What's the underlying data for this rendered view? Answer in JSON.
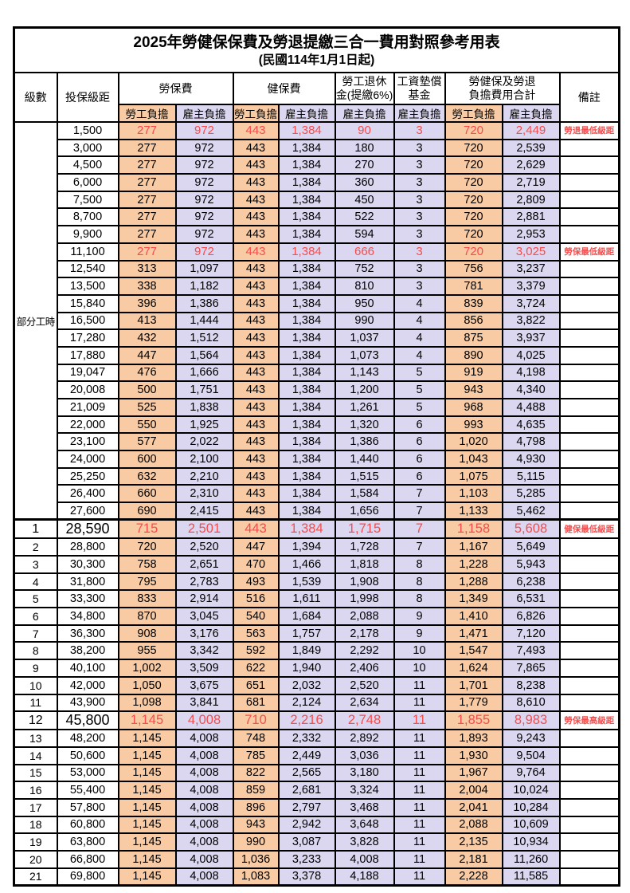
{
  "title": "2025年勞健保保費及勞退提繳三合一費用對照參考用表",
  "subtitle": "(民國114年1月1日起)",
  "header": {
    "level": "級數",
    "bracket": "投保級距",
    "labor_insurance": "勞保費",
    "health_insurance": "健保費",
    "pension_line1": "勞工退休",
    "pension_line2": "金(提繳6%)",
    "wage_fund_line1": "工資墊償",
    "wage_fund_line2": "基金",
    "total_line1": "勞健保及勞退",
    "total_line2": "負擔費用合計",
    "remark": "備註",
    "employee_label": "勞工負擔",
    "employer_label": "雇主負擔"
  },
  "partial_time_label": "部分工時",
  "colors": {
    "employee_bg": "#F8CBA4",
    "employer_bg": "#DBD7F0",
    "highlight": "#F84C4C"
  },
  "rows": [
    {
      "level": "",
      "bracket": "1,500",
      "values": [
        "277",
        "972",
        "443",
        "1,384",
        "90",
        "3",
        "720",
        "2,449"
      ],
      "remark": "勞退最低級距",
      "highlight": true,
      "big": false
    },
    {
      "level": "",
      "bracket": "3,000",
      "values": [
        "277",
        "972",
        "443",
        "1,384",
        "180",
        "3",
        "720",
        "2,539"
      ],
      "remark": "",
      "highlight": false,
      "big": false
    },
    {
      "level": "",
      "bracket": "4,500",
      "values": [
        "277",
        "972",
        "443",
        "1,384",
        "270",
        "3",
        "720",
        "2,629"
      ],
      "remark": "",
      "highlight": false,
      "big": false
    },
    {
      "level": "",
      "bracket": "6,000",
      "values": [
        "277",
        "972",
        "443",
        "1,384",
        "360",
        "3",
        "720",
        "2,719"
      ],
      "remark": "",
      "highlight": false,
      "big": false
    },
    {
      "level": "",
      "bracket": "7,500",
      "values": [
        "277",
        "972",
        "443",
        "1,384",
        "450",
        "3",
        "720",
        "2,809"
      ],
      "remark": "",
      "highlight": false,
      "big": false
    },
    {
      "level": "",
      "bracket": "8,700",
      "values": [
        "277",
        "972",
        "443",
        "1,384",
        "522",
        "3",
        "720",
        "2,881"
      ],
      "remark": "",
      "highlight": false,
      "big": false
    },
    {
      "level": "",
      "bracket": "9,900",
      "values": [
        "277",
        "972",
        "443",
        "1,384",
        "594",
        "3",
        "720",
        "2,953"
      ],
      "remark": "",
      "highlight": false,
      "big": false
    },
    {
      "level": "",
      "bracket": "11,100",
      "values": [
        "277",
        "972",
        "443",
        "1,384",
        "666",
        "3",
        "720",
        "3,025"
      ],
      "remark": "勞保最低級距",
      "highlight": true,
      "big": false
    },
    {
      "level": "",
      "bracket": "12,540",
      "values": [
        "313",
        "1,097",
        "443",
        "1,384",
        "752",
        "3",
        "756",
        "3,237"
      ],
      "remark": "",
      "highlight": false,
      "big": false
    },
    {
      "level": "",
      "bracket": "13,500",
      "values": [
        "338",
        "1,182",
        "443",
        "1,384",
        "810",
        "3",
        "781",
        "3,379"
      ],
      "remark": "",
      "highlight": false,
      "big": false
    },
    {
      "level": "",
      "bracket": "15,840",
      "values": [
        "396",
        "1,386",
        "443",
        "1,384",
        "950",
        "4",
        "839",
        "3,724"
      ],
      "remark": "",
      "highlight": false,
      "big": false
    },
    {
      "level": "",
      "bracket": "16,500",
      "values": [
        "413",
        "1,444",
        "443",
        "1,384",
        "990",
        "4",
        "856",
        "3,822"
      ],
      "remark": "",
      "highlight": false,
      "big": false
    },
    {
      "level": "",
      "bracket": "17,280",
      "values": [
        "432",
        "1,512",
        "443",
        "1,384",
        "1,037",
        "4",
        "875",
        "3,937"
      ],
      "remark": "",
      "highlight": false,
      "big": false
    },
    {
      "level": "",
      "bracket": "17,880",
      "values": [
        "447",
        "1,564",
        "443",
        "1,384",
        "1,073",
        "4",
        "890",
        "4,025"
      ],
      "remark": "",
      "highlight": false,
      "big": false
    },
    {
      "level": "",
      "bracket": "19,047",
      "values": [
        "476",
        "1,666",
        "443",
        "1,384",
        "1,143",
        "5",
        "919",
        "4,198"
      ],
      "remark": "",
      "highlight": false,
      "big": false
    },
    {
      "level": "",
      "bracket": "20,008",
      "values": [
        "500",
        "1,751",
        "443",
        "1,384",
        "1,200",
        "5",
        "943",
        "4,340"
      ],
      "remark": "",
      "highlight": false,
      "big": false
    },
    {
      "level": "",
      "bracket": "21,009",
      "values": [
        "525",
        "1,838",
        "443",
        "1,384",
        "1,261",
        "5",
        "968",
        "4,488"
      ],
      "remark": "",
      "highlight": false,
      "big": false
    },
    {
      "level": "",
      "bracket": "22,000",
      "values": [
        "550",
        "1,925",
        "443",
        "1,384",
        "1,320",
        "6",
        "993",
        "4,635"
      ],
      "remark": "",
      "highlight": false,
      "big": false
    },
    {
      "level": "",
      "bracket": "23,100",
      "values": [
        "577",
        "2,022",
        "443",
        "1,384",
        "1,386",
        "6",
        "1,020",
        "4,798"
      ],
      "remark": "",
      "highlight": false,
      "big": false
    },
    {
      "level": "",
      "bracket": "24,000",
      "values": [
        "600",
        "2,100",
        "443",
        "1,384",
        "1,440",
        "6",
        "1,043",
        "4,930"
      ],
      "remark": "",
      "highlight": false,
      "big": false
    },
    {
      "level": "",
      "bracket": "25,250",
      "values": [
        "632",
        "2,210",
        "443",
        "1,384",
        "1,515",
        "6",
        "1,075",
        "5,115"
      ],
      "remark": "",
      "highlight": false,
      "big": false
    },
    {
      "level": "",
      "bracket": "26,400",
      "values": [
        "660",
        "2,310",
        "443",
        "1,384",
        "1,584",
        "7",
        "1,103",
        "5,285"
      ],
      "remark": "",
      "highlight": false,
      "big": false
    },
    {
      "level": "",
      "bracket": "27,600",
      "values": [
        "690",
        "2,415",
        "443",
        "1,384",
        "1,656",
        "7",
        "1,133",
        "5,462"
      ],
      "remark": "",
      "highlight": false,
      "big": false
    },
    {
      "level": "1",
      "bracket": "28,590",
      "values": [
        "715",
        "2,501",
        "443",
        "1,384",
        "1,715",
        "7",
        "1,158",
        "5,608"
      ],
      "remark": "健保最低級距",
      "highlight": true,
      "big": true,
      "section_top": true
    },
    {
      "level": "2",
      "bracket": "28,800",
      "values": [
        "720",
        "2,520",
        "447",
        "1,394",
        "1,728",
        "7",
        "1,167",
        "5,649"
      ],
      "remark": "",
      "highlight": false,
      "big": false
    },
    {
      "level": "3",
      "bracket": "30,300",
      "values": [
        "758",
        "2,651",
        "470",
        "1,466",
        "1,818",
        "8",
        "1,228",
        "5,943"
      ],
      "remark": "",
      "highlight": false,
      "big": false
    },
    {
      "level": "4",
      "bracket": "31,800",
      "values": [
        "795",
        "2,783",
        "493",
        "1,539",
        "1,908",
        "8",
        "1,288",
        "6,238"
      ],
      "remark": "",
      "highlight": false,
      "big": false
    },
    {
      "level": "5",
      "bracket": "33,300",
      "values": [
        "833",
        "2,914",
        "516",
        "1,611",
        "1,998",
        "8",
        "1,349",
        "6,531"
      ],
      "remark": "",
      "highlight": false,
      "big": false
    },
    {
      "level": "6",
      "bracket": "34,800",
      "values": [
        "870",
        "3,045",
        "540",
        "1,684",
        "2,088",
        "9",
        "1,410",
        "6,826"
      ],
      "remark": "",
      "highlight": false,
      "big": false
    },
    {
      "level": "7",
      "bracket": "36,300",
      "values": [
        "908",
        "3,176",
        "563",
        "1,757",
        "2,178",
        "9",
        "1,471",
        "7,120"
      ],
      "remark": "",
      "highlight": false,
      "big": false
    },
    {
      "level": "8",
      "bracket": "38,200",
      "values": [
        "955",
        "3,342",
        "592",
        "1,849",
        "2,292",
        "10",
        "1,547",
        "7,493"
      ],
      "remark": "",
      "highlight": false,
      "big": false
    },
    {
      "level": "9",
      "bracket": "40,100",
      "values": [
        "1,002",
        "3,509",
        "622",
        "1,940",
        "2,406",
        "10",
        "1,624",
        "7,865"
      ],
      "remark": "",
      "highlight": false,
      "big": false
    },
    {
      "level": "10",
      "bracket": "42,000",
      "values": [
        "1,050",
        "3,675",
        "651",
        "2,032",
        "2,520",
        "11",
        "1,701",
        "8,238"
      ],
      "remark": "",
      "highlight": false,
      "big": false
    },
    {
      "level": "11",
      "bracket": "43,900",
      "values": [
        "1,098",
        "3,841",
        "681",
        "2,124",
        "2,634",
        "11",
        "1,779",
        "8,610"
      ],
      "remark": "",
      "highlight": false,
      "big": false
    },
    {
      "level": "12",
      "bracket": "45,800",
      "values": [
        "1,145",
        "4,008",
        "710",
        "2,216",
        "2,748",
        "11",
        "1,855",
        "8,983"
      ],
      "remark": "勞保最高級距",
      "highlight": true,
      "big": true
    },
    {
      "level": "13",
      "bracket": "48,200",
      "values": [
        "1,145",
        "4,008",
        "748",
        "2,332",
        "2,892",
        "11",
        "1,893",
        "9,243"
      ],
      "remark": "",
      "highlight": false,
      "big": false
    },
    {
      "level": "14",
      "bracket": "50,600",
      "values": [
        "1,145",
        "4,008",
        "785",
        "2,449",
        "3,036",
        "11",
        "1,930",
        "9,504"
      ],
      "remark": "",
      "highlight": false,
      "big": false
    },
    {
      "level": "15",
      "bracket": "53,000",
      "values": [
        "1,145",
        "4,008",
        "822",
        "2,565",
        "3,180",
        "11",
        "1,967",
        "9,764"
      ],
      "remark": "",
      "highlight": false,
      "big": false
    },
    {
      "level": "16",
      "bracket": "55,400",
      "values": [
        "1,145",
        "4,008",
        "859",
        "2,681",
        "3,324",
        "11",
        "2,004",
        "10,024"
      ],
      "remark": "",
      "highlight": false,
      "big": false
    },
    {
      "level": "17",
      "bracket": "57,800",
      "values": [
        "1,145",
        "4,008",
        "896",
        "2,797",
        "3,468",
        "11",
        "2,041",
        "10,284"
      ],
      "remark": "",
      "highlight": false,
      "big": false
    },
    {
      "level": "18",
      "bracket": "60,800",
      "values": [
        "1,145",
        "4,008",
        "943",
        "2,942",
        "3,648",
        "11",
        "2,088",
        "10,609"
      ],
      "remark": "",
      "highlight": false,
      "big": false
    },
    {
      "level": "19",
      "bracket": "63,800",
      "values": [
        "1,145",
        "4,008",
        "990",
        "3,087",
        "3,828",
        "11",
        "2,135",
        "10,934"
      ],
      "remark": "",
      "highlight": false,
      "big": false
    },
    {
      "level": "20",
      "bracket": "66,800",
      "values": [
        "1,145",
        "4,008",
        "1,036",
        "3,233",
        "4,008",
        "11",
        "2,181",
        "11,260"
      ],
      "remark": "",
      "highlight": false,
      "big": false
    },
    {
      "level": "21",
      "bracket": "69,800",
      "values": [
        "1,145",
        "4,008",
        "1,083",
        "3,378",
        "4,188",
        "11",
        "2,228",
        "11,585"
      ],
      "remark": "",
      "highlight": false,
      "big": false
    }
  ]
}
